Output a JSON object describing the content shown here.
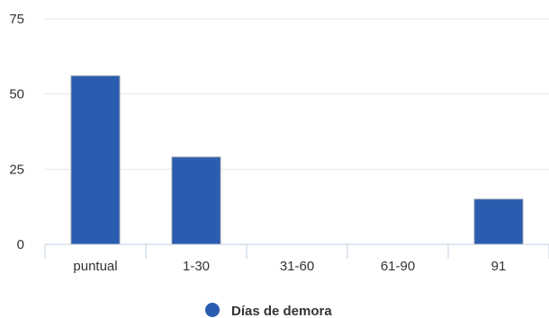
{
  "chart_data": {
    "type": "bar",
    "categories": [
      "puntual",
      "1-30",
      "31-60",
      "61-90",
      "91"
    ],
    "series": [
      {
        "name": "Días de demora",
        "values": [
          56,
          29,
          0,
          0,
          15
        ],
        "color": "#2a5db0"
      }
    ],
    "ylim": [
      0,
      75
    ],
    "yticks": [
      0,
      25,
      50,
      75
    ],
    "grid": true,
    "legend": "bottom-center",
    "colors": {
      "bar_fill": "#2a5db0",
      "bar_stroke": "#7f8fa6",
      "grid": "#e6e6e6",
      "axis": "#c0d0e0",
      "text": "#333333"
    }
  }
}
